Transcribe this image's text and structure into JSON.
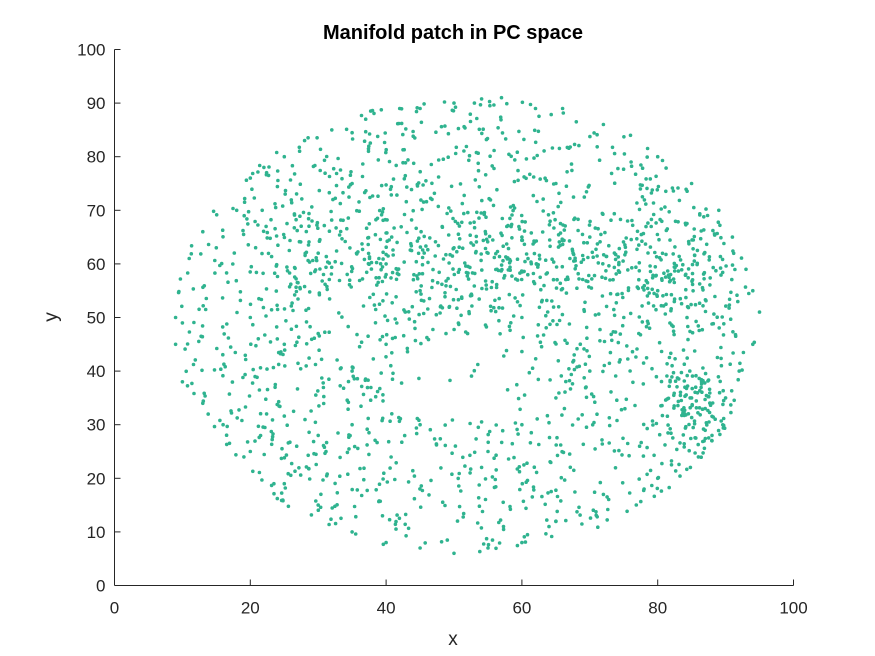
{
  "chart_data": {
    "type": "scatter",
    "title": "Manifold patch in PC space",
    "xlabel": "x",
    "ylabel": "y",
    "xlim": [
      0,
      100
    ],
    "ylim": [
      0,
      100
    ],
    "xticks": [
      "0",
      "20",
      "40",
      "60",
      "80",
      "100"
    ],
    "yticks": [
      "0",
      "10",
      "20",
      "30",
      "40",
      "50",
      "60",
      "70",
      "80",
      "90",
      "100"
    ],
    "grid": false,
    "marker_color": "#2fb38f",
    "point_count": 2000,
    "point_distribution": "elliptical patch centered near (51, 49) spanning x 8.5–95 and y 5.5–91, denser band at y 55–70 and near (87, 33), sparse hole near (50, 38)",
    "points_sample": [
      [
        9,
        50
      ],
      [
        10,
        49
      ],
      [
        11,
        61
      ],
      [
        13,
        66
      ],
      [
        15,
        63
      ],
      [
        18,
        70
      ],
      [
        20,
        76
      ],
      [
        22,
        78
      ],
      [
        25,
        80
      ],
      [
        28,
        83
      ],
      [
        32,
        85
      ],
      [
        37,
        87
      ],
      [
        42,
        89
      ],
      [
        45,
        89
      ],
      [
        50,
        90
      ],
      [
        53,
        90
      ],
      [
        57,
        91
      ],
      [
        62,
        89
      ],
      [
        66,
        89
      ],
      [
        72,
        86
      ],
      [
        76,
        84
      ],
      [
        80,
        80
      ],
      [
        85,
        75
      ],
      [
        89,
        70
      ],
      [
        91,
        65
      ],
      [
        93,
        59
      ],
      [
        94,
        55
      ],
      [
        95,
        51
      ],
      [
        94,
        45
      ],
      [
        92,
        40
      ],
      [
        90,
        35
      ],
      [
        88,
        28
      ],
      [
        86,
        24
      ],
      [
        80,
        20
      ],
      [
        78,
        18
      ],
      [
        72,
        17
      ],
      [
        65,
        12
      ],
      [
        60,
        8
      ],
      [
        55,
        7
      ],
      [
        50,
        6
      ],
      [
        45,
        7
      ],
      [
        40,
        8
      ],
      [
        35,
        10
      ],
      [
        30,
        15
      ],
      [
        25,
        19
      ],
      [
        20,
        25
      ],
      [
        16,
        30
      ],
      [
        13,
        34
      ],
      [
        10,
        38
      ],
      [
        9,
        45
      ],
      [
        50,
        63
      ],
      [
        55,
        62
      ],
      [
        60,
        65
      ],
      [
        70,
        65
      ],
      [
        40,
        60
      ],
      [
        30,
        62
      ],
      [
        85,
        35
      ],
      [
        87,
        33
      ],
      [
        88,
        27
      ],
      [
        84,
        37
      ],
      [
        20,
        50
      ],
      [
        25,
        45
      ],
      [
        30,
        47
      ],
      [
        35,
        40
      ],
      [
        45,
        30
      ],
      [
        55,
        25
      ],
      [
        65,
        35
      ],
      [
        70,
        40
      ],
      [
        75,
        50
      ],
      [
        80,
        55
      ],
      [
        60,
        50
      ],
      [
        45,
        55
      ],
      [
        40,
        45
      ],
      [
        35,
        30
      ],
      [
        30,
        28
      ],
      [
        60,
        30
      ],
      [
        52,
        47
      ],
      [
        48,
        52
      ],
      [
        65,
        75
      ],
      [
        35,
        75
      ]
    ]
  }
}
